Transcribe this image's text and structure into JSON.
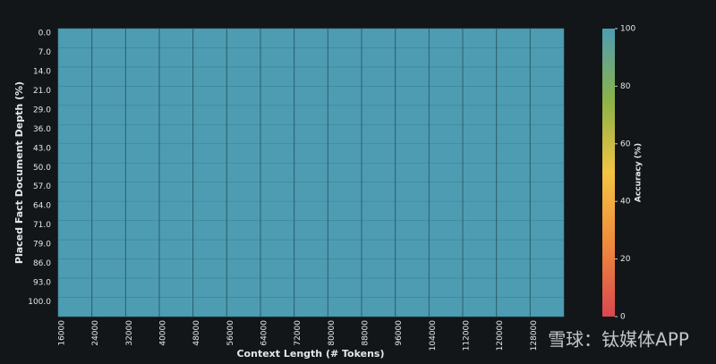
{
  "chart_data": {
    "type": "heatmap",
    "x_label": "Context Length (# Tokens)",
    "y_label": "Placed Fact Document Depth (%)",
    "colorbar_label": "Accuracy (%)",
    "categories": [
      "16000",
      "24000",
      "32000",
      "40000",
      "48000",
      "56000",
      "64000",
      "72000",
      "80000",
      "88000",
      "96000",
      "104000",
      "112000",
      "120000",
      "128000"
    ],
    "y_categories": [
      "0.0",
      "7.0",
      "14.0",
      "21.0",
      "29.0",
      "36.0",
      "43.0",
      "50.0",
      "57.0",
      "64.0",
      "71.0",
      "79.0",
      "86.0",
      "93.0",
      "100.0"
    ],
    "values": [
      [
        100,
        100,
        100,
        100,
        100,
        100,
        100,
        100,
        100,
        100,
        100,
        100,
        100,
        100,
        100
      ],
      [
        100,
        100,
        100,
        100,
        100,
        100,
        100,
        100,
        100,
        100,
        100,
        100,
        100,
        100,
        100
      ],
      [
        100,
        100,
        100,
        100,
        100,
        100,
        100,
        100,
        100,
        100,
        100,
        100,
        100,
        100,
        100
      ],
      [
        100,
        100,
        100,
        100,
        100,
        100,
        100,
        100,
        100,
        100,
        100,
        100,
        100,
        100,
        100
      ],
      [
        100,
        100,
        100,
        100,
        100,
        100,
        100,
        100,
        100,
        100,
        100,
        100,
        100,
        100,
        100
      ],
      [
        100,
        100,
        100,
        100,
        100,
        100,
        100,
        100,
        100,
        100,
        100,
        100,
        100,
        100,
        100
      ],
      [
        100,
        100,
        100,
        100,
        100,
        100,
        100,
        100,
        100,
        100,
        100,
        100,
        100,
        100,
        100
      ],
      [
        100,
        100,
        100,
        100,
        100,
        100,
        100,
        100,
        100,
        100,
        100,
        100,
        100,
        100,
        100
      ],
      [
        100,
        100,
        100,
        100,
        100,
        100,
        100,
        100,
        100,
        100,
        100,
        100,
        100,
        100,
        100
      ],
      [
        100,
        100,
        100,
        100,
        100,
        100,
        100,
        100,
        100,
        100,
        100,
        100,
        100,
        100,
        100
      ],
      [
        100,
        100,
        100,
        100,
        100,
        100,
        100,
        100,
        100,
        100,
        100,
        100,
        100,
        100,
        100
      ],
      [
        100,
        100,
        100,
        100,
        100,
        100,
        100,
        100,
        100,
        100,
        100,
        100,
        100,
        100,
        100
      ],
      [
        100,
        100,
        100,
        100,
        100,
        100,
        100,
        100,
        100,
        100,
        100,
        100,
        100,
        100,
        100
      ],
      [
        100,
        100,
        100,
        100,
        100,
        100,
        100,
        100,
        100,
        100,
        100,
        100,
        100,
        100,
        100
      ],
      [
        100,
        100,
        100,
        100,
        100,
        100,
        100,
        100,
        100,
        100,
        100,
        100,
        100,
        100,
        100
      ]
    ],
    "colorbar_lim": [
      0,
      100
    ],
    "colorbar_ticks": [
      0,
      20,
      40,
      60,
      80,
      100
    ],
    "colormap": [
      "#d9474f",
      "#ee8a3c",
      "#f4c443",
      "#8cb248",
      "#4e9cb2"
    ],
    "watermark": "雪球：钛媒体APP"
  }
}
